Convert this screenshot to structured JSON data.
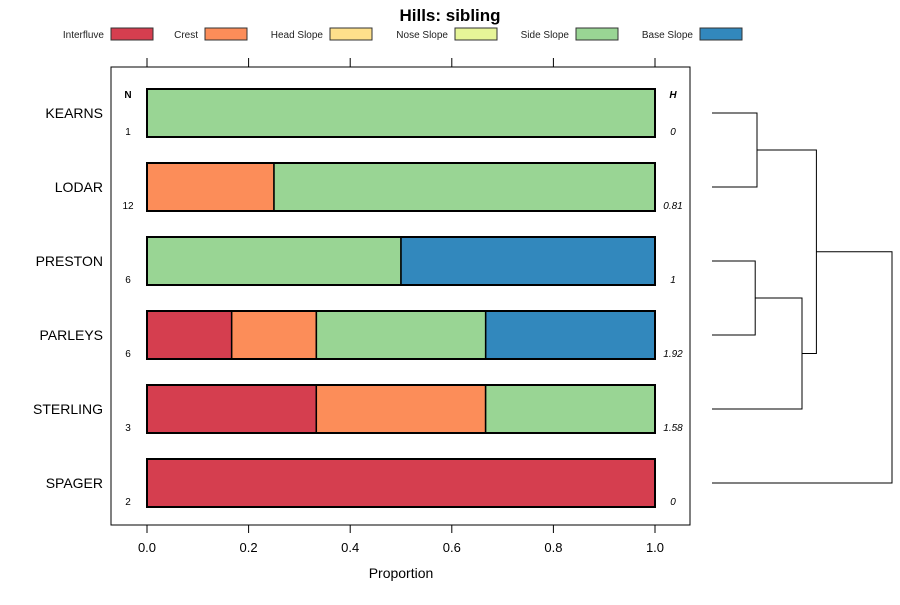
{
  "chart_data": {
    "type": "bar",
    "stacked": true,
    "orientation": "horizontal",
    "title": "Hills: sibling",
    "xlabel": "Proportion",
    "xlim": [
      0,
      1
    ],
    "xticks": [
      "0.0",
      "0.2",
      "0.4",
      "0.6",
      "0.8",
      "1.0"
    ],
    "legend_position": "top",
    "legend": [
      {
        "name": "Interfluve",
        "color": "#D53E4F"
      },
      {
        "name": "Crest",
        "color": "#FC8D59"
      },
      {
        "name": "Head Slope",
        "color": "#FEE08B"
      },
      {
        "name": "Nose Slope",
        "color": "#E6F598"
      },
      {
        "name": "Side Slope",
        "color": "#99D594"
      },
      {
        "name": "Base Slope",
        "color": "#3288BD"
      }
    ],
    "n_header": "N",
    "h_header": "H",
    "categories": [
      "KEARNS",
      "LODAR",
      "PRESTON",
      "PARLEYS",
      "STERLING",
      "SPAGER"
    ],
    "n": [
      "1",
      "12",
      "6",
      "6",
      "3",
      "2"
    ],
    "h": [
      "0",
      "0.81",
      "1",
      "1.92",
      "1.58",
      "0"
    ],
    "series": [
      {
        "name": "Interfluve",
        "values": [
          0,
          0,
          0,
          0.1667,
          0.3333,
          1
        ]
      },
      {
        "name": "Crest",
        "values": [
          0,
          0.25,
          0,
          0.1667,
          0.3333,
          0
        ]
      },
      {
        "name": "Head Slope",
        "values": [
          0,
          0,
          0,
          0,
          0,
          0
        ]
      },
      {
        "name": "Nose Slope",
        "values": [
          0,
          0,
          0,
          0,
          0,
          0
        ]
      },
      {
        "name": "Side Slope",
        "values": [
          1,
          0.75,
          0.5,
          0.3333,
          0.3333,
          0
        ]
      },
      {
        "name": "Base Slope",
        "values": [
          0,
          0,
          0.5,
          0.3333,
          0,
          0
        ]
      }
    ],
    "dendrogram": {
      "merges": [
        {
          "id": "m1",
          "a": "KEARNS",
          "b": "LODAR",
          "height": 0.25
        },
        {
          "id": "m2",
          "a": "PRESTON",
          "b": "PARLEYS",
          "height": 0.24
        },
        {
          "id": "m3",
          "a": "m2",
          "b": "STERLING",
          "height": 0.5
        },
        {
          "id": "m4",
          "a": "m1",
          "b": "m3",
          "height": 0.58
        },
        {
          "id": "m5",
          "a": "m4",
          "b": "SPAGER",
          "height": 1.0
        }
      ]
    }
  }
}
